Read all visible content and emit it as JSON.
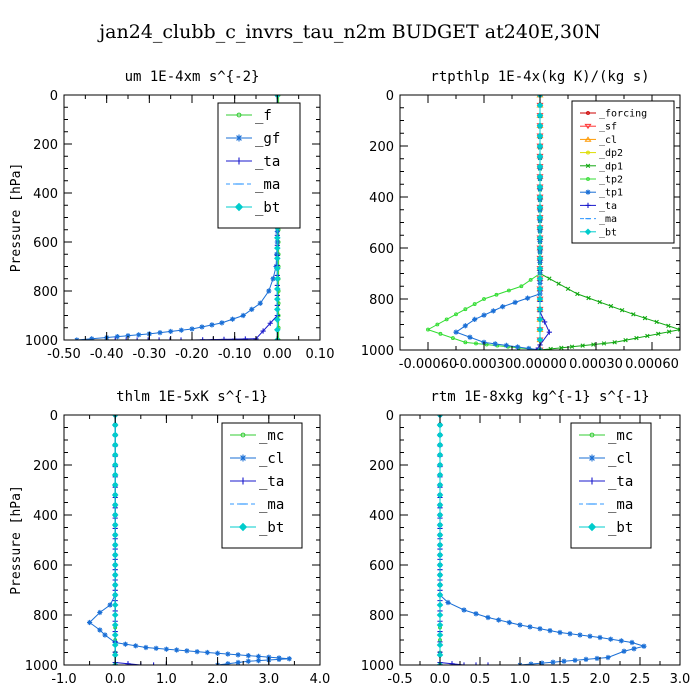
{
  "figure_title": "jan24_clubb_c_invrs_tau_n2m  BUDGET at240E,30N",
  "chart_data": [
    {
      "type": "line",
      "title": "um  1E-4xm s^{-2}",
      "ylabel": "Pressure [hPa]",
      "xlim": [
        -0.5,
        0.1
      ],
      "ylim": [
        1000,
        0
      ],
      "xticks": [
        "-0.50",
        "-0.40",
        "-0.30",
        "-0.20",
        "-0.10",
        "0.00",
        "0.10"
      ],
      "yticks": [
        "0",
        "200",
        "400",
        "600",
        "800",
        "1000"
      ],
      "legend_position": "top-right",
      "series": [
        {
          "name": "_f",
          "color": "#33cc33",
          "marker": "circle",
          "x": [
            0.003,
            0.003,
            0.003,
            0.003,
            0.003,
            0.003,
            0.003
          ],
          "y": [
            0,
            200,
            400,
            600,
            800,
            900,
            1000
          ]
        },
        {
          "name": "_gf",
          "color": "#1a6fd6",
          "marker": "star",
          "x": [
            0.0,
            0.0,
            -0.003,
            -0.01,
            -0.02,
            -0.04,
            -0.08,
            -0.13,
            -0.2,
            -0.3,
            -0.4,
            -0.47
          ],
          "y": [
            0,
            600,
            700,
            750,
            800,
            850,
            900,
            930,
            955,
            975,
            990,
            1000
          ]
        },
        {
          "name": "_ta",
          "color": "#1a1acc",
          "marker": "plus",
          "x": [
            0.0,
            0.0,
            -0.05,
            -0.2,
            -0.38
          ],
          "y": [
            0,
            900,
            995,
            1000,
            1000
          ]
        },
        {
          "name": "_ma",
          "color": "#3399ff",
          "marker": "dash",
          "x": [
            0.0,
            0.0
          ],
          "y": [
            0,
            1000
          ]
        },
        {
          "name": "_bt",
          "color": "#00cccc",
          "marker": "diamond",
          "x": [
            0.0,
            0.0
          ],
          "y": [
            0,
            1000
          ]
        }
      ]
    },
    {
      "type": "line",
      "title": "rtpthlp  1E-4x(kg K)/(kg s)",
      "ylabel": "",
      "xlim": [
        -0.00075,
        0.00075
      ],
      "ylim": [
        1000,
        0
      ],
      "xticks": [
        "-0.00060",
        "-0.00030",
        "0.00000",
        "0.00030",
        "0.00060"
      ],
      "yticks": [
        "0",
        "200",
        "400",
        "600",
        "800",
        "1000"
      ],
      "legend_position": "top-right",
      "series": [
        {
          "name": "_forcing",
          "color": "#cc0000",
          "marker": "circle",
          "x": [
            0.0,
            0.0
          ],
          "y": [
            0,
            1000
          ]
        },
        {
          "name": "_sf",
          "color": "#ff3333",
          "marker": "triangle-down",
          "x": [
            0.0,
            0.0
          ],
          "y": [
            0,
            1000
          ]
        },
        {
          "name": "_cl",
          "color": "#ff9900",
          "marker": "triangle-up",
          "x": [
            0.0,
            0.0
          ],
          "y": [
            0,
            1000
          ]
        },
        {
          "name": "_dp2",
          "color": "#dddd00",
          "marker": "circle",
          "x": [
            0.0,
            0.0
          ],
          "y": [
            0,
            1000
          ]
        },
        {
          "name": "_dp1",
          "color": "#11a811",
          "marker": "cross",
          "x": [
            0.0,
            0.0,
            0.0002,
            0.0005,
            0.00075,
            0.0004,
            0.0
          ],
          "y": [
            0,
            700,
            780,
            860,
            920,
            970,
            1000
          ]
        },
        {
          "name": "_tp2",
          "color": "#33dd33",
          "marker": "circle",
          "x": [
            0.0,
            0.0,
            -0.0001,
            -0.0003,
            -0.0006,
            -0.0004,
            0.0
          ],
          "y": [
            0,
            700,
            750,
            800,
            920,
            970,
            1000
          ]
        },
        {
          "name": "_tp1",
          "color": "#1a6fd6",
          "marker": "star",
          "x": [
            0.0,
            0.0,
            -0.0002,
            -0.00035,
            -0.00045,
            -0.0003,
            0.0
          ],
          "y": [
            0,
            780,
            830,
            880,
            930,
            970,
            1000
          ]
        },
        {
          "name": "_ta",
          "color": "#1a1acc",
          "marker": "plus",
          "x": [
            0.0,
            0.0,
            5e-05,
            0.0,
            -2e-05
          ],
          "y": [
            0,
            850,
            930,
            980,
            1000
          ]
        },
        {
          "name": "_ma",
          "color": "#3399ff",
          "marker": "dash",
          "x": [
            0.0,
            0.0
          ],
          "y": [
            0,
            1000
          ]
        },
        {
          "name": "_bt",
          "color": "#00cccc",
          "marker": "diamond",
          "x": [
            0.0,
            0.0
          ],
          "y": [
            0,
            1000
          ]
        }
      ]
    },
    {
      "type": "line",
      "title": "thlm  1E-5xK s^{-1}",
      "ylabel": "Pressure [hPa]",
      "xlim": [
        -1.0,
        4.0
      ],
      "ylim": [
        1000,
        0
      ],
      "xticks": [
        "-1.0",
        "0.0",
        "1.0",
        "2.0",
        "3.0",
        "4.0"
      ],
      "yticks": [
        "0",
        "200",
        "400",
        "600",
        "800",
        "1000"
      ],
      "legend_position": "top-right",
      "series": [
        {
          "name": "_mc",
          "color": "#33cc33",
          "marker": "circle",
          "x": [
            0.0,
            0.0,
            0.0,
            0.0,
            0.0,
            0.0,
            0.0
          ],
          "y": [
            0,
            200,
            400,
            600,
            800,
            900,
            1000
          ]
        },
        {
          "name": "_cl",
          "color": "#1a6fd6",
          "marker": "star",
          "x": [
            0.0,
            0.0,
            -0.1,
            -0.3,
            -0.5,
            -0.3,
            -0.2,
            0.0,
            0.6,
            1.8,
            3.4,
            2.6,
            2.0
          ],
          "y": [
            0,
            720,
            760,
            790,
            830,
            860,
            880,
            910,
            930,
            950,
            975,
            985,
            1000
          ]
        },
        {
          "name": "_ta",
          "color": "#1a1acc",
          "marker": "plus",
          "x": [
            0.0,
            0.0,
            0.5,
            1.0
          ],
          "y": [
            0,
            990,
            1000,
            1000
          ]
        },
        {
          "name": "_ma",
          "color": "#3399ff",
          "marker": "dash",
          "x": [
            0.0,
            0.0
          ],
          "y": [
            0,
            1000
          ]
        },
        {
          "name": "_bt",
          "color": "#00cccc",
          "marker": "diamond",
          "x": [
            0.0,
            0.0
          ],
          "y": [
            0,
            1000
          ]
        }
      ]
    },
    {
      "type": "line",
      "title": "rtm  1E-8xkg kg^{-1} s^{-1}",
      "ylabel": "",
      "xlim": [
        -0.5,
        3.0
      ],
      "ylim": [
        1000,
        0
      ],
      "xticks": [
        "-0.5",
        "0.0",
        "0.5",
        "1.0",
        "1.5",
        "2.0",
        "2.5",
        "3.0"
      ],
      "yticks": [
        "0",
        "200",
        "400",
        "600",
        "800",
        "1000"
      ],
      "legend_position": "top-right",
      "series": [
        {
          "name": "_mc",
          "color": "#33cc33",
          "marker": "circle",
          "x": [
            0.0,
            0.0,
            0.0,
            0.0,
            0.0,
            0.0,
            0.0
          ],
          "y": [
            0,
            200,
            400,
            600,
            800,
            900,
            1000
          ]
        },
        {
          "name": "_cl",
          "color": "#1a6fd6",
          "marker": "star",
          "x": [
            0.0,
            0.0,
            0.1,
            0.3,
            0.6,
            1.0,
            1.5,
            2.0,
            2.4,
            2.55,
            2.3,
            2.1,
            1.0
          ],
          "y": [
            0,
            720,
            750,
            780,
            810,
            840,
            870,
            890,
            910,
            925,
            945,
            970,
            1000
          ]
        },
        {
          "name": "_ta",
          "color": "#1a1acc",
          "marker": "plus",
          "x": [
            0.0,
            0.0,
            0.3,
            0.6
          ],
          "y": [
            0,
            990,
            1000,
            1000
          ]
        },
        {
          "name": "_ma",
          "color": "#3399ff",
          "marker": "dash",
          "x": [
            0.0,
            0.0
          ],
          "y": [
            0,
            1000
          ]
        },
        {
          "name": "_bt",
          "color": "#00cccc",
          "marker": "diamond",
          "x": [
            0.0,
            0.0
          ],
          "y": [
            0,
            1000
          ]
        }
      ]
    }
  ]
}
